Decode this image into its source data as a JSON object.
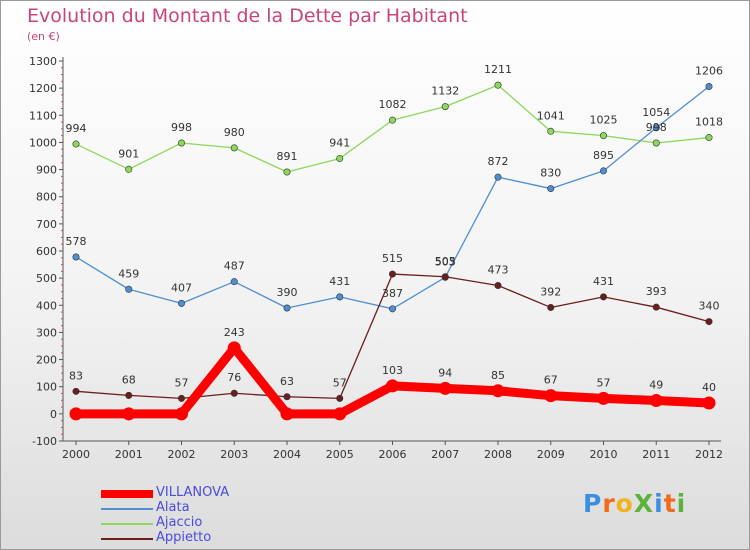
{
  "chart_data": {
    "type": "line",
    "title": "Evolution du Montant de la Dette par Habitant",
    "subtitle": "(en €)",
    "xlabel": "",
    "ylabel": "",
    "categories": [
      "2000",
      "2001",
      "2002",
      "2003",
      "2004",
      "2005",
      "2006",
      "2007",
      "2008",
      "2009",
      "2010",
      "2011",
      "2012"
    ],
    "ylim": [
      -100,
      1300
    ],
    "yticks": [
      -100,
      0,
      100,
      200,
      300,
      400,
      500,
      600,
      700,
      800,
      900,
      1000,
      1100,
      1200,
      1300
    ],
    "grid": false,
    "legend_position": "bottom-left",
    "series": [
      {
        "name": "VILLANOVA",
        "color": "#ff0000",
        "values": [
          0,
          0,
          0,
          243,
          0,
          0,
          103,
          94,
          85,
          67,
          57,
          49,
          40
        ]
      },
      {
        "name": "Alata",
        "color": "#4f8fd1",
        "values": [
          578,
          459,
          407,
          487,
          390,
          431,
          387,
          503,
          872,
          830,
          895,
          1054,
          1206
        ]
      },
      {
        "name": "Ajaccio",
        "color": "#8cd85a",
        "values": [
          994,
          901,
          998,
          980,
          891,
          941,
          1082,
          1132,
          1211,
          1041,
          1025,
          998,
          1018
        ]
      },
      {
        "name": "Appietto",
        "color": "#6b1e1e",
        "values": [
          83,
          68,
          57,
          76,
          63,
          57,
          515,
          505,
          473,
          392,
          431,
          393,
          340
        ]
      }
    ],
    "data_labels": {
      "VILLANOVA": [
        "0",
        "0",
        "0",
        "243",
        "0",
        "0",
        "103",
        "94",
        "85",
        "67",
        "57",
        "49",
        "40"
      ],
      "Alata": [
        "578",
        "459",
        "407",
        "487",
        "390",
        "431",
        "387",
        "503",
        "872",
        "830",
        "895",
        "1054",
        "1206"
      ],
      "Ajaccio": [
        "994",
        "901",
        "998",
        "980",
        "891",
        "941",
        "1082",
        "1132",
        "1211",
        "1041",
        "1025",
        "998",
        "1018"
      ],
      "Appietto": [
        "83",
        "68",
        "57",
        "76",
        "63",
        "57",
        "515",
        "505",
        "473",
        "392",
        "431",
        "393",
        "340"
      ]
    }
  },
  "branding": {
    "logo_text": "ProXiti",
    "letter_colors": [
      "#3a8fe0",
      "#f06a1a",
      "#f2b21a",
      "#5bb33b",
      "#3a8fe0",
      "#f06a1a",
      "#5bb33b"
    ]
  }
}
